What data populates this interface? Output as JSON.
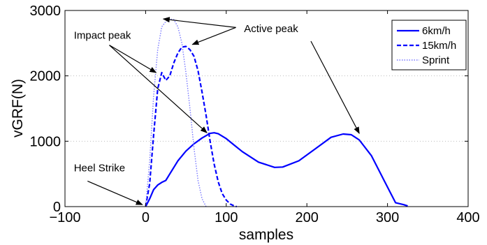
{
  "chart_data": {
    "type": "line",
    "xlabel": "samples",
    "ylabel": "vGRF(N)",
    "xlim": [
      -100,
      400
    ],
    "ylim": [
      0,
      3000
    ],
    "x_ticks": [
      -100,
      0,
      100,
      200,
      300,
      400
    ],
    "x_tick_labels": [
      "−100",
      "0",
      "100",
      "200",
      "300",
      "400"
    ],
    "y_ticks": [
      0,
      1000,
      2000,
      3000
    ],
    "y_tick_labels": [
      "0",
      "1000",
      "2000",
      "3000"
    ],
    "grid": "dotted horizontal",
    "legend_position": "top-right",
    "colors": {
      "series": "#0000ff",
      "sprint": "#7777ff",
      "axis": "#000000",
      "grid": "#bdbdbd"
    },
    "series": [
      {
        "name": "6km/h",
        "style": "solid",
        "x": [
          0,
          5,
          10,
          15,
          20,
          25,
          30,
          40,
          50,
          60,
          70,
          80,
          85,
          90,
          100,
          110,
          120,
          140,
          160,
          170,
          190,
          210,
          230,
          245,
          255,
          265,
          280,
          295,
          310,
          315,
          320,
          325
        ],
        "y": [
          0,
          120,
          260,
          330,
          370,
          400,
          500,
          700,
          850,
          960,
          1050,
          1120,
          1130,
          1115,
          1040,
          940,
          840,
          680,
          600,
          605,
          700,
          880,
          1060,
          1110,
          1100,
          1020,
          780,
          420,
          60,
          45,
          30,
          10
        ]
      },
      {
        "name": "15km/h",
        "style": "dashed",
        "x": [
          0,
          5,
          10,
          15,
          20,
          25,
          30,
          35,
          40,
          45,
          50,
          55,
          60,
          65,
          70,
          75,
          80,
          85,
          90,
          95,
          100,
          105,
          110,
          113
        ],
        "y": [
          0,
          350,
          1100,
          1800,
          2050,
          1930,
          2000,
          2200,
          2350,
          2440,
          2450,
          2400,
          2300,
          2080,
          1750,
          1400,
          1000,
          650,
          380,
          200,
          100,
          40,
          10,
          0
        ]
      },
      {
        "name": "Sprint",
        "style": "dotted",
        "x": [
          0,
          5,
          10,
          15,
          20,
          25,
          30,
          35,
          40,
          45,
          50,
          55,
          60,
          65,
          70,
          75
        ],
        "y": [
          0,
          700,
          1700,
          2400,
          2750,
          2830,
          2870,
          2860,
          2750,
          2500,
          2050,
          1500,
          900,
          400,
          120,
          0
        ]
      }
    ],
    "annotations": [
      {
        "text": "Active peak",
        "x": 122,
        "y": 2670
      },
      {
        "text": "Impact peak",
        "x": -89,
        "y": 2570
      },
      {
        "text": "Heel Strike",
        "x": -89,
        "y": 540
      }
    ],
    "arrows": [
      {
        "from": [
          112,
          2740
        ],
        "to": [
          22,
          2870
        ]
      },
      {
        "from": [
          112,
          2740
        ],
        "to": [
          58,
          2480
        ]
      },
      {
        "from": [
          -45,
          2470
        ],
        "to": [
          13,
          2050
        ]
      },
      {
        "from": [
          -45,
          2470
        ],
        "to": [
          76,
          1130
        ]
      },
      {
        "from": [
          205,
          2530
        ],
        "to": [
          265,
          1120
        ]
      },
      {
        "from": [
          -72,
          390
        ],
        "to": [
          -4,
          30
        ]
      }
    ]
  }
}
